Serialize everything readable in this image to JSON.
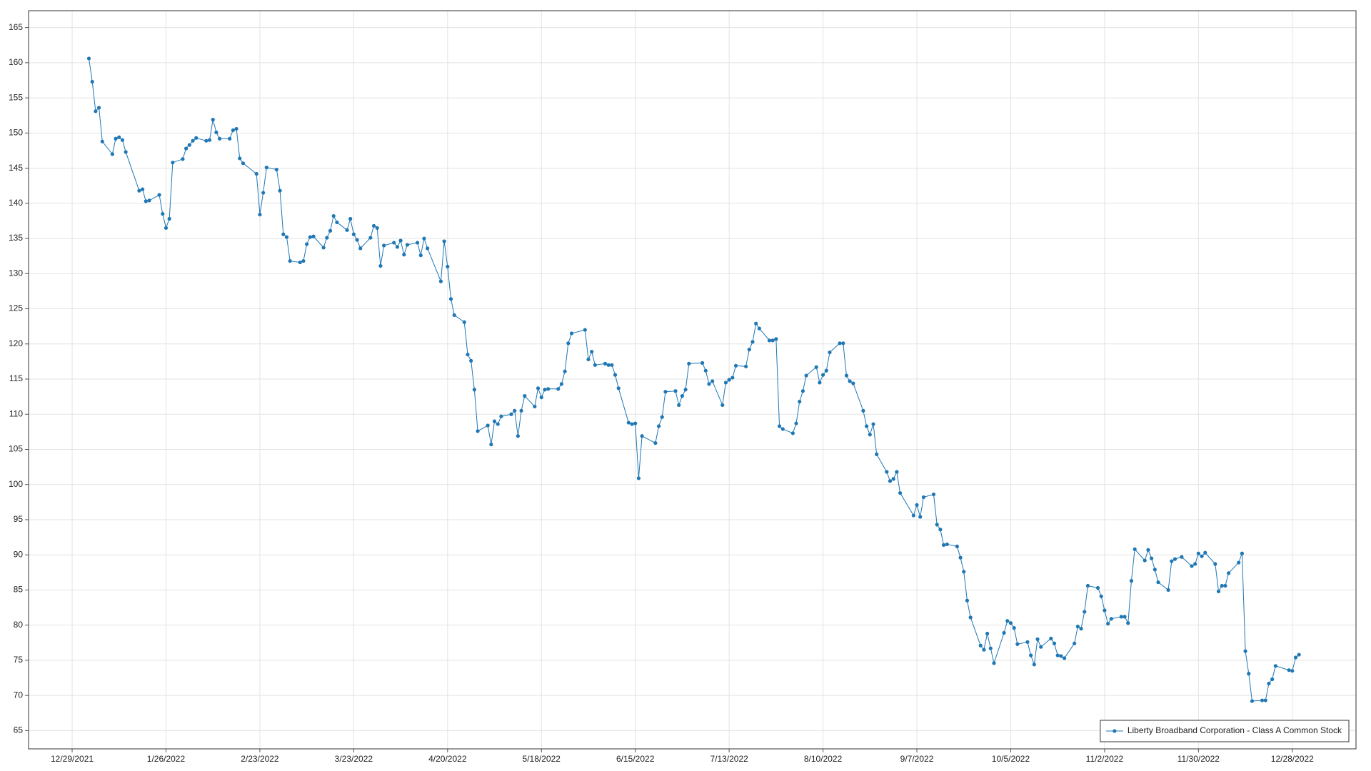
{
  "chart_data": {
    "type": "line",
    "grid": true,
    "legend": "lower right",
    "xlim": [
      "12/16/2021",
      "1/16/2023"
    ],
    "xticks": [
      "12/29/2021",
      "1/26/2022",
      "2/23/2022",
      "3/23/2022",
      "4/20/2022",
      "5/18/2022",
      "6/15/2022",
      "7/13/2022",
      "8/10/2022",
      "9/7/2022",
      "10/5/2022",
      "11/2/2022",
      "11/30/2022",
      "12/28/2022"
    ],
    "ylim": [
      62.4,
      167.4
    ],
    "yticks": [
      65,
      70,
      75,
      80,
      85,
      90,
      95,
      100,
      105,
      110,
      115,
      120,
      125,
      130,
      135,
      140,
      145,
      150,
      155,
      160,
      165
    ],
    "x": [
      "1/3/2022",
      "1/4/2022",
      "1/5/2022",
      "1/6/2022",
      "1/7/2022",
      "1/10/2022",
      "1/11/2022",
      "1/12/2022",
      "1/13/2022",
      "1/14/2022",
      "1/18/2022",
      "1/19/2022",
      "1/20/2022",
      "1/21/2022",
      "1/24/2022",
      "1/25/2022",
      "1/26/2022",
      "1/27/2022",
      "1/28/2022",
      "1/31/2022",
      "2/1/2022",
      "2/2/2022",
      "2/3/2022",
      "2/4/2022",
      "2/7/2022",
      "2/8/2022",
      "2/9/2022",
      "2/10/2022",
      "2/11/2022",
      "2/14/2022",
      "2/15/2022",
      "2/16/2022",
      "2/17/2022",
      "2/18/2022",
      "2/22/2022",
      "2/23/2022",
      "2/24/2022",
      "2/25/2022",
      "2/28/2022",
      "3/1/2022",
      "3/2/2022",
      "3/3/2022",
      "3/4/2022",
      "3/7/2022",
      "3/8/2022",
      "3/9/2022",
      "3/10/2022",
      "3/11/2022",
      "3/14/2022",
      "3/15/2022",
      "3/16/2022",
      "3/17/2022",
      "3/18/2022",
      "3/21/2022",
      "3/22/2022",
      "3/23/2022",
      "3/24/2022",
      "3/25/2022",
      "3/28/2022",
      "3/29/2022",
      "3/30/2022",
      "3/31/2022",
      "4/1/2022",
      "4/4/2022",
      "4/5/2022",
      "4/6/2022",
      "4/7/2022",
      "4/8/2022",
      "4/11/2022",
      "4/12/2022",
      "4/13/2022",
      "4/14/2022",
      "4/18/2022",
      "4/19/2022",
      "4/20/2022",
      "4/21/2022",
      "4/22/2022",
      "4/25/2022",
      "4/26/2022",
      "4/27/2022",
      "4/28/2022",
      "4/29/2022",
      "5/2/2022",
      "5/3/2022",
      "5/4/2022",
      "5/5/2022",
      "5/6/2022",
      "5/9/2022",
      "5/10/2022",
      "5/11/2022",
      "5/12/2022",
      "5/13/2022",
      "5/16/2022",
      "5/17/2022",
      "5/18/2022",
      "5/19/2022",
      "5/20/2022",
      "5/23/2022",
      "5/24/2022",
      "5/25/2022",
      "5/26/2022",
      "5/27/2022",
      "5/31/2022",
      "6/1/2022",
      "6/2/2022",
      "6/3/2022",
      "6/6/2022",
      "6/7/2022",
      "6/8/2022",
      "6/9/2022",
      "6/10/2022",
      "6/13/2022",
      "6/14/2022",
      "6/15/2022",
      "6/16/2022",
      "6/17/2022",
      "6/21/2022",
      "6/22/2022",
      "6/23/2022",
      "6/24/2022",
      "6/27/2022",
      "6/28/2022",
      "6/29/2022",
      "6/30/2022",
      "7/1/2022",
      "7/5/2022",
      "7/6/2022",
      "7/7/2022",
      "7/8/2022",
      "7/11/2022",
      "7/12/2022",
      "7/13/2022",
      "7/14/2022",
      "7/15/2022",
      "7/18/2022",
      "7/19/2022",
      "7/20/2022",
      "7/21/2022",
      "7/22/2022",
      "7/25/2022",
      "7/26/2022",
      "7/27/2022",
      "7/28/2022",
      "7/29/2022",
      "8/1/2022",
      "8/2/2022",
      "8/3/2022",
      "8/4/2022",
      "8/5/2022",
      "8/8/2022",
      "8/9/2022",
      "8/10/2022",
      "8/11/2022",
      "8/12/2022",
      "8/15/2022",
      "8/16/2022",
      "8/17/2022",
      "8/18/2022",
      "8/19/2022",
      "8/22/2022",
      "8/23/2022",
      "8/24/2022",
      "8/25/2022",
      "8/26/2022",
      "8/29/2022",
      "8/30/2022",
      "8/31/2022",
      "9/1/2022",
      "9/2/2022",
      "9/6/2022",
      "9/7/2022",
      "9/8/2022",
      "9/9/2022",
      "9/12/2022",
      "9/13/2022",
      "9/14/2022",
      "9/15/2022",
      "9/16/2022",
      "9/19/2022",
      "9/20/2022",
      "9/21/2022",
      "9/22/2022",
      "9/23/2022",
      "9/26/2022",
      "9/27/2022",
      "9/28/2022",
      "9/29/2022",
      "9/30/2022",
      "10/3/2022",
      "10/4/2022",
      "10/5/2022",
      "10/6/2022",
      "10/7/2022",
      "10/10/2022",
      "10/11/2022",
      "10/12/2022",
      "10/13/2022",
      "10/14/2022",
      "10/17/2022",
      "10/18/2022",
      "10/19/2022",
      "10/20/2022",
      "10/21/2022",
      "10/24/2022",
      "10/25/2022",
      "10/26/2022",
      "10/27/2022",
      "10/28/2022",
      "10/31/2022",
      "11/1/2022",
      "11/2/2022",
      "11/3/2022",
      "11/4/2022",
      "11/7/2022",
      "11/8/2022",
      "11/9/2022",
      "11/10/2022",
      "11/11/2022",
      "11/14/2022",
      "11/15/2022",
      "11/16/2022",
      "11/17/2022",
      "11/18/2022",
      "11/21/2022",
      "11/22/2022",
      "11/23/2022",
      "11/25/2022",
      "11/28/2022",
      "11/29/2022",
      "11/30/2022",
      "12/1/2022",
      "12/2/2022",
      "12/5/2022",
      "12/6/2022",
      "12/7/2022",
      "12/8/2022",
      "12/9/2022",
      "12/12/2022",
      "12/13/2022",
      "12/14/2022",
      "12/15/2022",
      "12/16/2022",
      "12/19/2022",
      "12/20/2022",
      "12/21/2022",
      "12/22/2022",
      "12/23/2022",
      "12/27/2022",
      "12/28/2022",
      "12/29/2022",
      "12/30/2022"
    ],
    "series": [
      {
        "name": "Liberty Broadband Corporation - Class A Common Stock",
        "color": "#1f77b4",
        "values": [
          160.6,
          157.3,
          153.1,
          153.6,
          148.8,
          147.0,
          149.2,
          149.4,
          149.0,
          147.3,
          141.8,
          142.0,
          140.3,
          140.4,
          141.2,
          138.5,
          136.5,
          137.8,
          145.8,
          146.3,
          147.8,
          148.3,
          148.9,
          149.3,
          148.9,
          149.0,
          151.9,
          150.1,
          149.2,
          149.2,
          150.4,
          150.6,
          146.4,
          145.7,
          144.2,
          138.4,
          141.5,
          145.1,
          144.8,
          141.8,
          135.6,
          135.2,
          131.8,
          131.6,
          131.8,
          134.2,
          135.2,
          135.3,
          133.7,
          135.1,
          136.1,
          138.2,
          137.3,
          136.2,
          137.8,
          135.6,
          134.8,
          133.6,
          135.1,
          136.8,
          136.5,
          131.1,
          134.0,
          134.4,
          133.8,
          134.7,
          132.7,
          134.1,
          134.4,
          132.6,
          135.0,
          133.6,
          128.9,
          134.6,
          131.0,
          126.4,
          124.1,
          123.1,
          118.5,
          117.6,
          113.5,
          107.6,
          108.4,
          105.7,
          109.0,
          108.6,
          109.7,
          110.0,
          110.5,
          106.9,
          110.5,
          112.6,
          111.1,
          113.7,
          112.4,
          113.5,
          113.6,
          113.6,
          114.3,
          116.1,
          120.1,
          121.5,
          122.0,
          117.8,
          118.9,
          117.0,
          117.2,
          117.0,
          117.0,
          115.6,
          113.7,
          108.8,
          108.6,
          108.7,
          100.9,
          106.9,
          105.9,
          108.3,
          109.6,
          113.2,
          113.3,
          111.3,
          112.6,
          113.5,
          117.2,
          117.3,
          116.2,
          114.3,
          114.7,
          111.3,
          114.5,
          114.9,
          115.2,
          116.9,
          116.8,
          119.2,
          120.3,
          122.9,
          122.2,
          120.5,
          120.5,
          120.7,
          108.3,
          107.9,
          107.3,
          108.7,
          111.8,
          113.3,
          115.5,
          116.7,
          114.5,
          115.6,
          116.2,
          118.8,
          120.1,
          120.1,
          115.5,
          114.7,
          114.4,
          110.5,
          108.3,
          107.1,
          108.6,
          104.3,
          101.8,
          100.5,
          100.8,
          101.8,
          98.8,
          95.6,
          97.1,
          95.4,
          98.2,
          98.6,
          94.3,
          93.6,
          91.4,
          91.5,
          91.2,
          89.6,
          87.6,
          83.5,
          81.1,
          77.1,
          76.5,
          78.8,
          76.7,
          74.6,
          78.9,
          80.6,
          80.3,
          79.6,
          77.3,
          77.6,
          75.7,
          74.4,
          78.0,
          76.9,
          78.1,
          77.4,
          75.7,
          75.6,
          75.3,
          77.4,
          79.8,
          79.5,
          81.9,
          85.6,
          85.3,
          84.1,
          82.1,
          80.2,
          80.9,
          81.2,
          81.2,
          80.3,
          86.3,
          90.8,
          89.2,
          90.7,
          89.5,
          87.9,
          86.1,
          85.0,
          89.1,
          89.4,
          89.7,
          88.4,
          88.7,
          90.2,
          89.8,
          90.3,
          88.7,
          84.8,
          85.6,
          85.6,
          87.4,
          88.9,
          90.2,
          76.3,
          73.1,
          69.2,
          69.3,
          69.3,
          71.7,
          72.3,
          74.2,
          73.6,
          73.5,
          75.4,
          75.8
        ]
      }
    ]
  }
}
